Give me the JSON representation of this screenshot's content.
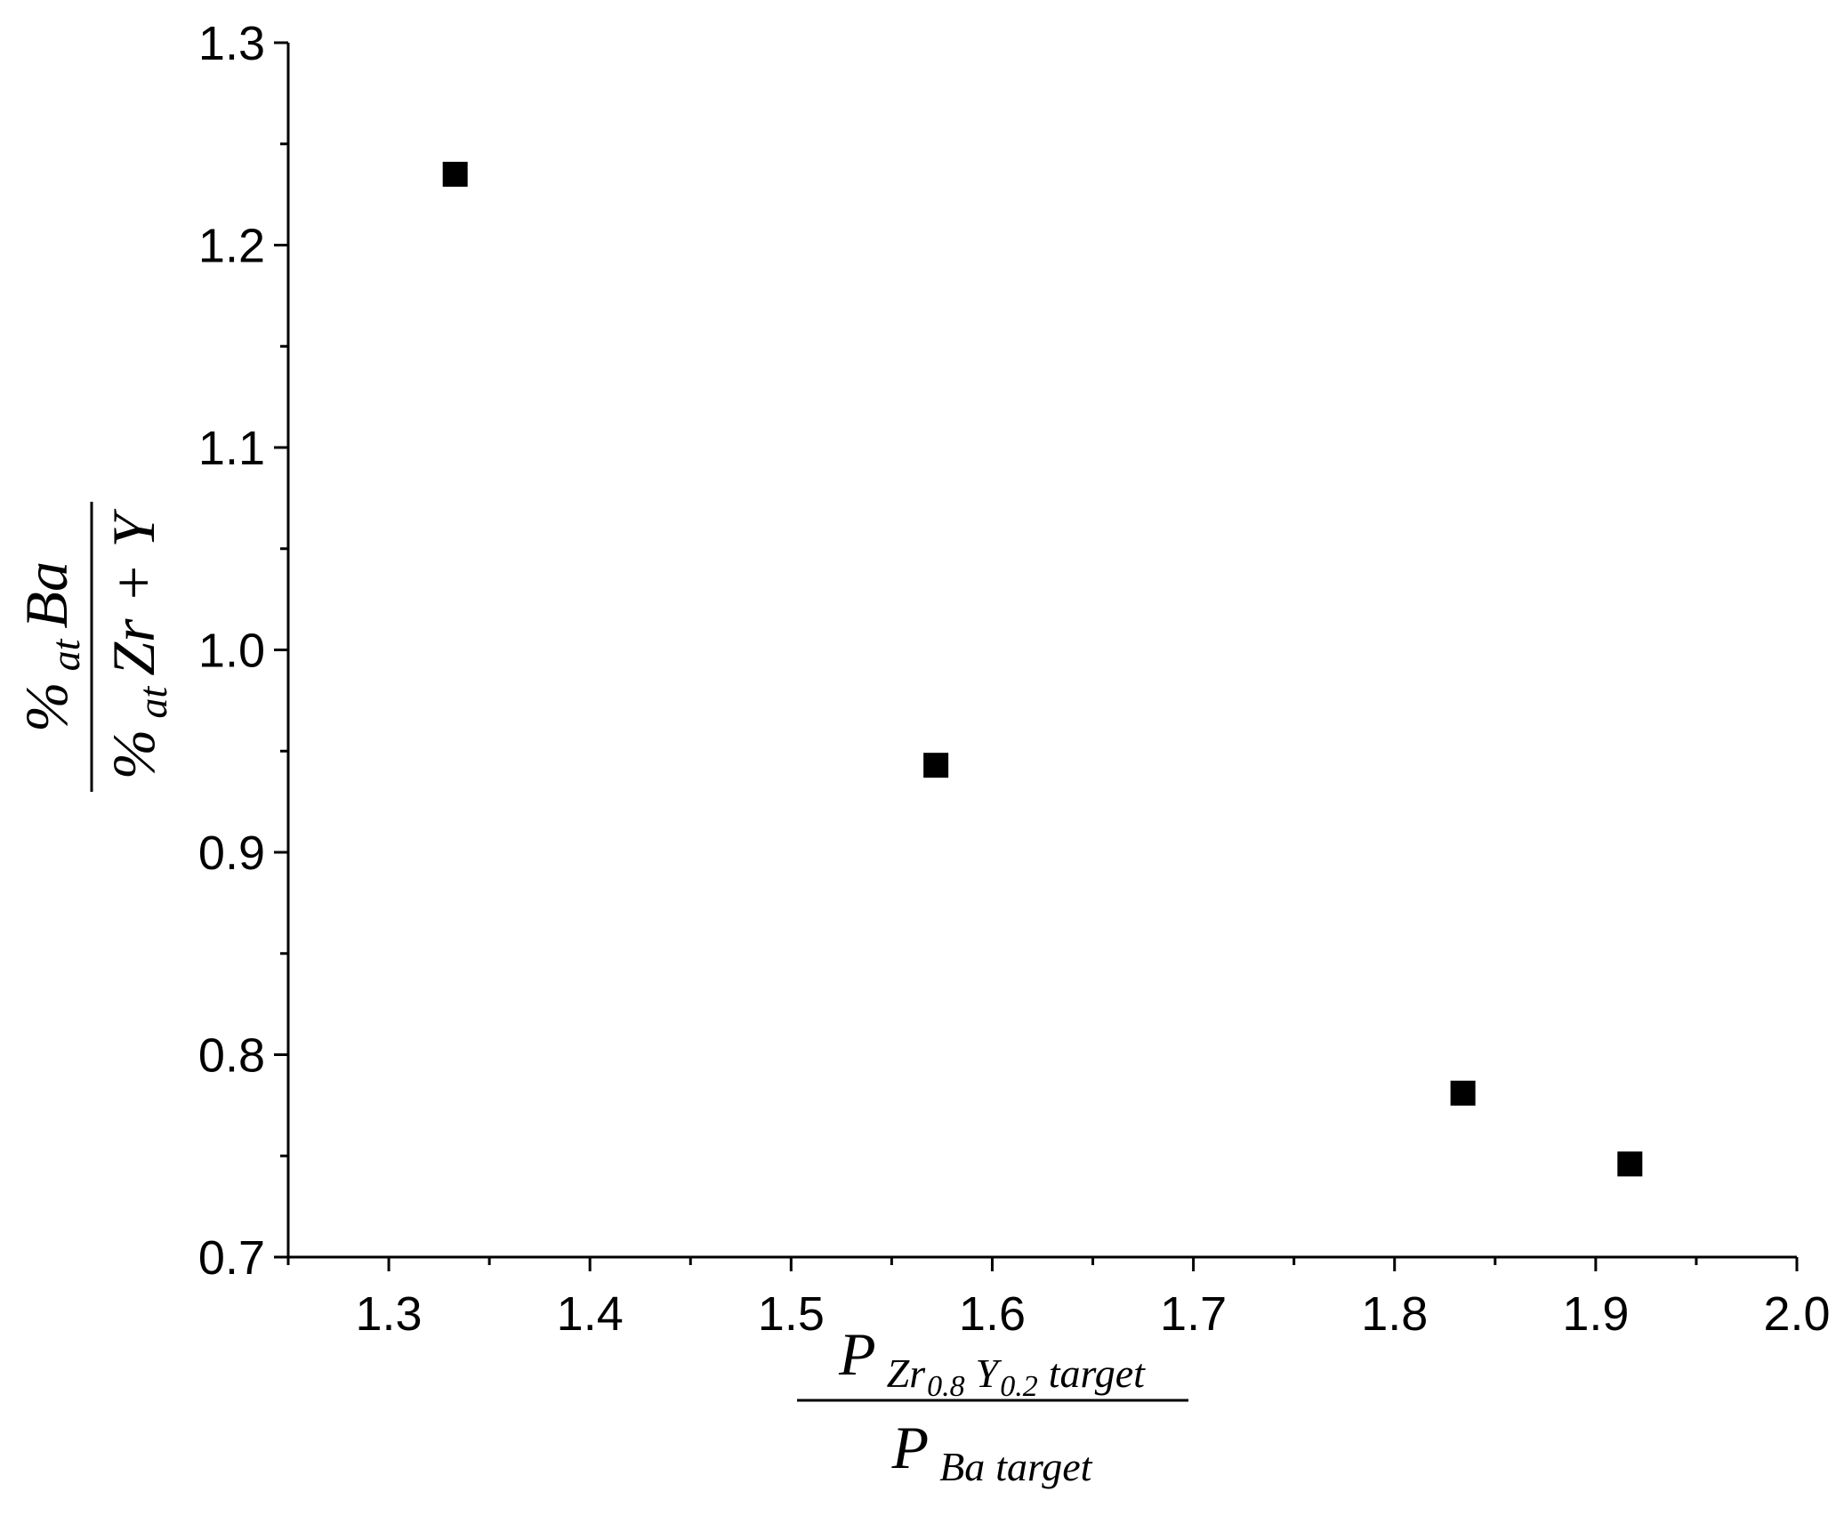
{
  "chart_data": {
    "type": "scatter",
    "xlabel": {
      "numerator": [
        "P",
        "Zr",
        "0.8",
        "Y",
        "0.2",
        "target"
      ],
      "denominator": [
        "P",
        "Ba",
        "target"
      ]
    },
    "ylabel": {
      "numerator": [
        "%",
        "at",
        "Ba"
      ],
      "denominator": [
        "%",
        "at",
        "Zr + Y"
      ]
    },
    "x": [
      1.333,
      1.572,
      1.834,
      1.917
    ],
    "values": [
      1.235,
      0.943,
      0.781,
      0.746
    ],
    "color": "#000000",
    "xlim": [
      1.25,
      2.0
    ],
    "xticks": [
      1.3,
      1.4,
      1.5,
      1.6,
      1.7,
      1.8,
      1.9,
      {
        "value": 2,
        "label": "2.0"
      }
    ],
    "ylim": [
      0.7,
      1.3
    ],
    "yticks": [
      0.7,
      0.8,
      0.9,
      {
        "value": 1,
        "label": "1.0"
      },
      1.1,
      1.2,
      1.3
    ],
    "grid": false
  }
}
